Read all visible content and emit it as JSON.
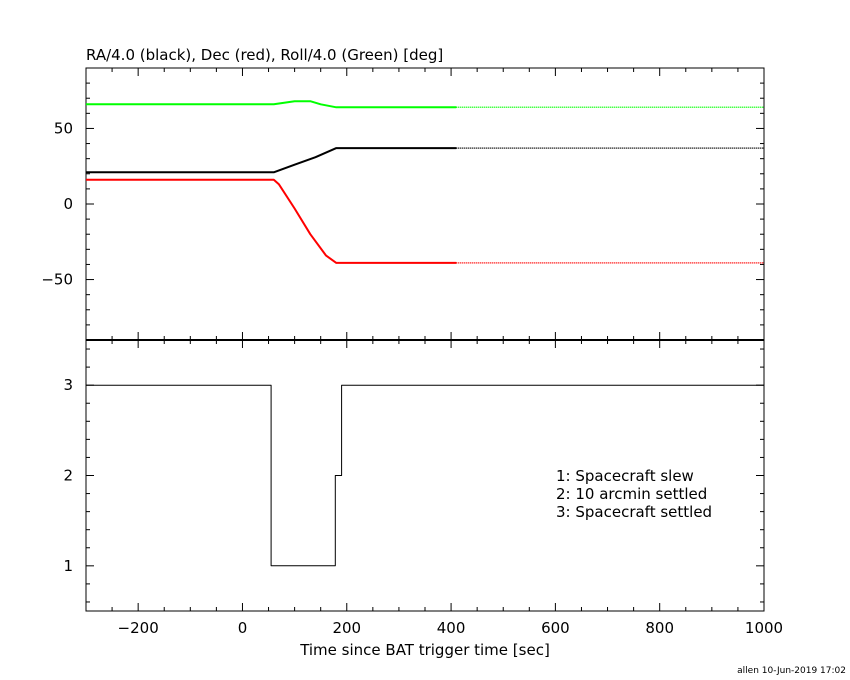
{
  "chart_data": [
    {
      "type": "line",
      "title": "RA/4.0 (black), Dec (red), Roll/4.0 (Green) [deg]",
      "xlabel": "Time since BAT trigger time [sec]",
      "ylabel": "",
      "xlim": [
        -300,
        1000
      ],
      "ylim": [
        -90,
        90
      ],
      "yticks": [
        -50,
        0,
        50
      ],
      "yticklabels": [
        "−50",
        "0",
        "50"
      ],
      "series": [
        {
          "color": "#000000",
          "x": [
            -300,
            60,
            100,
            140,
            180,
            410
          ],
          "y": [
            21,
            21,
            26,
            31,
            37,
            37
          ],
          "dotted_from_x": 410,
          "dotted_to_x": 1000
        },
        {
          "color": "#ff0000",
          "x": [
            -300,
            60,
            70,
            100,
            130,
            160,
            180,
            410
          ],
          "y": [
            16,
            16,
            13,
            -3,
            -20,
            -34,
            -39,
            -39
          ],
          "dotted_from_x": 410,
          "dotted_to_x": 1000
        },
        {
          "color": "#00ff00",
          "x": [
            -300,
            60,
            100,
            130,
            150,
            180,
            410
          ],
          "y": [
            66,
            66,
            68,
            68,
            66,
            64,
            64
          ],
          "dotted_from_x": 410,
          "dotted_to_x": 1000
        }
      ]
    },
    {
      "type": "line",
      "xlabel": "Time since BAT trigger time [sec]",
      "xlim": [
        -300,
        1000
      ],
      "ylim": [
        0.5,
        3.5
      ],
      "yticks": [
        1,
        2,
        3
      ],
      "yticklabels": [
        "1",
        "2",
        "3"
      ],
      "xticks": [
        -200,
        0,
        200,
        400,
        600,
        800,
        1000
      ],
      "xticklabels": [
        "−200",
        "0",
        "200",
        "400",
        "600",
        "800",
        "1000"
      ],
      "series": [
        {
          "color": "#000000",
          "step": true,
          "x": [
            -300,
            55,
            55,
            178,
            178,
            190,
            190,
            1000
          ],
          "y": [
            3,
            3,
            1,
            1,
            2,
            2,
            3,
            3
          ]
        }
      ],
      "legend_lines": [
        "1: Spacecraft slew",
        "2: 10 arcmin settled",
        "3: Spacecraft settled"
      ]
    }
  ],
  "footer": "allen 10-Jun-2019 17:02"
}
